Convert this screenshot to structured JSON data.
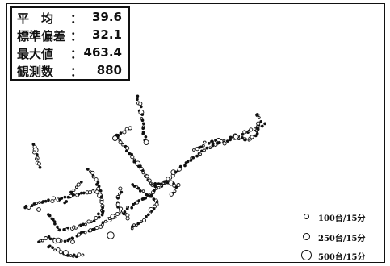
{
  "stats": {
    "rows": [
      {
        "label": "平　均",
        "colon": "：",
        "value": "39.6"
      },
      {
        "label": "標準偏差",
        "colon": "：",
        "value": "32.1"
      },
      {
        "label": "最大値",
        "colon": "：",
        "value": "463.4"
      },
      {
        "label": "観測数",
        "colon": "：",
        "value": "880"
      }
    ]
  },
  "legend": {
    "items": [
      {
        "label": "100台/15分"
      },
      {
        "label": "250台/15分"
      },
      {
        "label": "500台/15分"
      }
    ]
  },
  "colors": {
    "ink": "#111111",
    "background": "#ffffff"
  }
}
